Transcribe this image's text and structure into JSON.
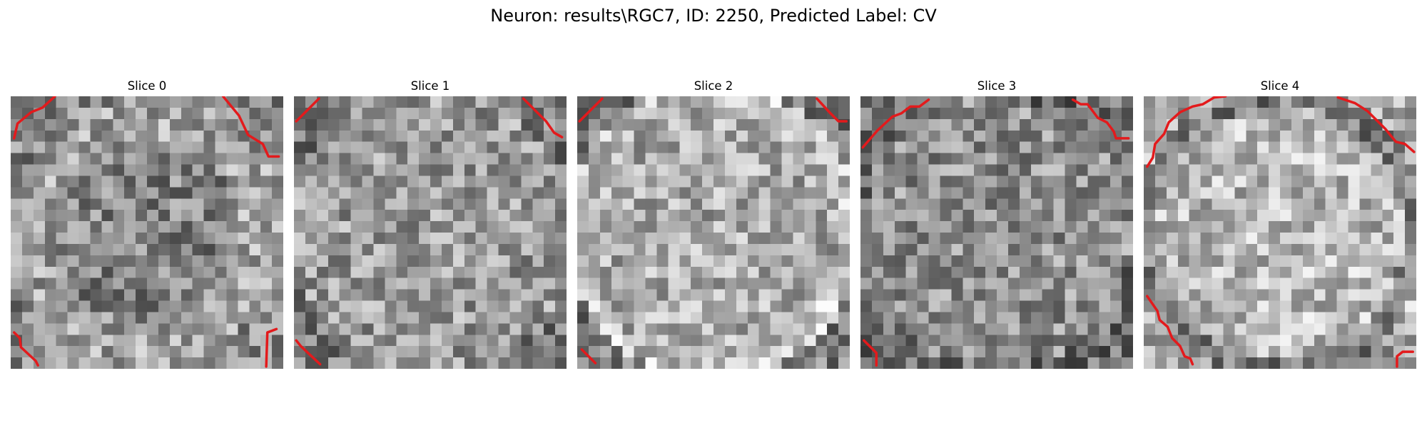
{
  "figure": {
    "title": "Neuron: results\\RGC7, ID: 2250, Predicted Label: CV"
  },
  "slices": [
    {
      "title": "Slice 0"
    },
    {
      "title": "Slice 1"
    },
    {
      "title": "Slice 2"
    },
    {
      "title": "Slice 3"
    },
    {
      "title": "Slice 4"
    }
  ],
  "colors": {
    "background": "#ffffff",
    "contour": "#e31a1c"
  }
}
